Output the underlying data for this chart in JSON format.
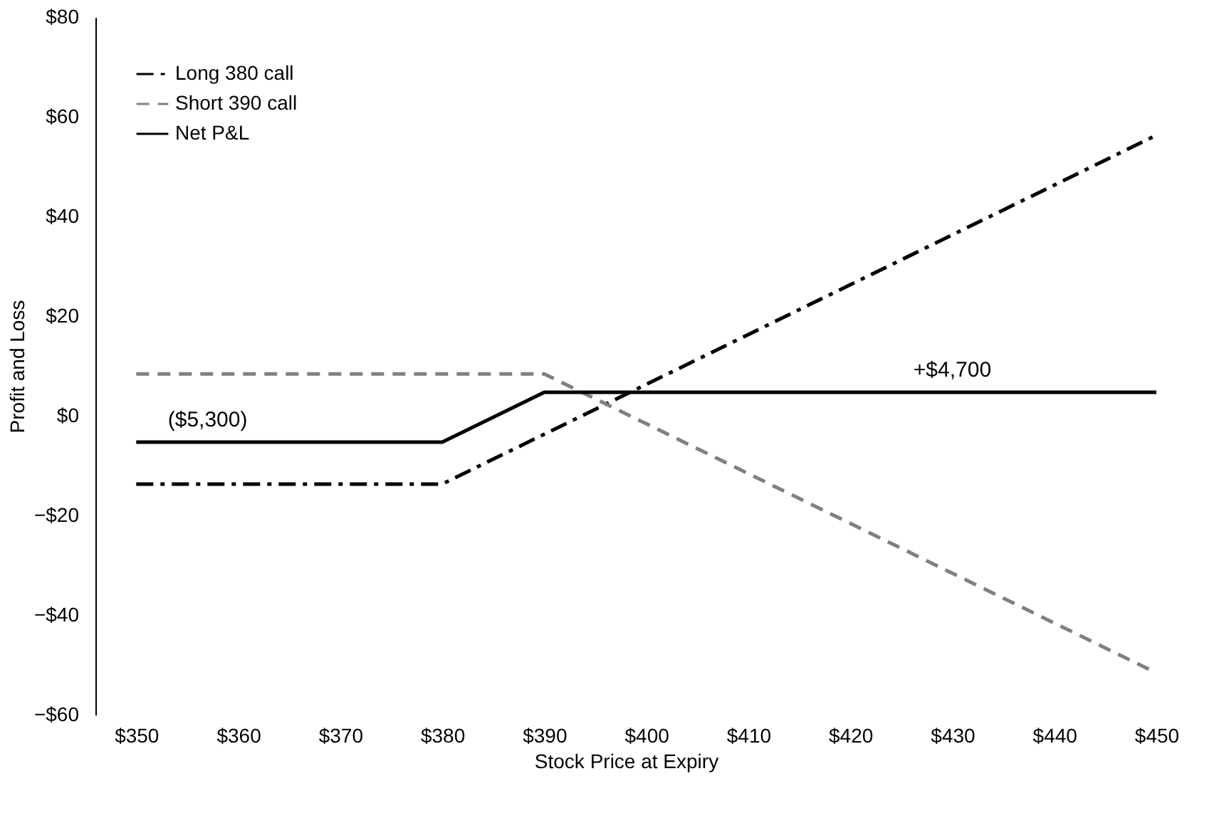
{
  "chart_data": {
    "type": "line",
    "xlabel": "Stock Price at Expiry",
    "ylabel": "Profit and Loss",
    "xlim": [
      346,
      450
    ],
    "ylim": [
      -60,
      80
    ],
    "xticks": [
      {
        "value": 350,
        "label": "$350"
      },
      {
        "value": 360,
        "label": "$360"
      },
      {
        "value": 370,
        "label": "$370"
      },
      {
        "value": 380,
        "label": "$380"
      },
      {
        "value": 390,
        "label": "$390"
      },
      {
        "value": 400,
        "label": "$400"
      },
      {
        "value": 410,
        "label": "$410"
      },
      {
        "value": 420,
        "label": "$420"
      },
      {
        "value": 430,
        "label": "$430"
      },
      {
        "value": 440,
        "label": "$440"
      },
      {
        "value": 450,
        "label": "$450"
      }
    ],
    "yticks": [
      {
        "value": -60,
        "label": "−$60"
      },
      {
        "value": -40,
        "label": "−$40"
      },
      {
        "value": -20,
        "label": "−$20"
      },
      {
        "value": 0,
        "label": "$0"
      },
      {
        "value": 20,
        "label": "$20"
      },
      {
        "value": 40,
        "label": "$40"
      },
      {
        "value": 60,
        "label": "$60"
      },
      {
        "value": 80,
        "label": "$80"
      }
    ],
    "series": [
      {
        "name": "Long 380 call",
        "color": "#000000",
        "line_style": "dashdot",
        "x": [
          350,
          380,
          450
        ],
        "values": [
          -13.7,
          -13.7,
          56.3
        ]
      },
      {
        "name": "Short 390 call",
        "color": "#808080",
        "line_style": "dashed",
        "x": [
          350,
          390,
          450
        ],
        "values": [
          8.4,
          8.4,
          -51.6
        ]
      },
      {
        "name": "Net P&L",
        "color": "#000000",
        "line_style": "solid",
        "x": [
          350,
          380,
          390,
          450
        ],
        "values": [
          -5.3,
          -5.3,
          4.7,
          4.7
        ]
      }
    ],
    "annotations": [
      {
        "text": "($5,300)",
        "x": 357,
        "y": -5.3
      },
      {
        "text": "+$4,700",
        "x": 430,
        "y": 4.7
      }
    ],
    "legend": "top left",
    "grid": false
  }
}
